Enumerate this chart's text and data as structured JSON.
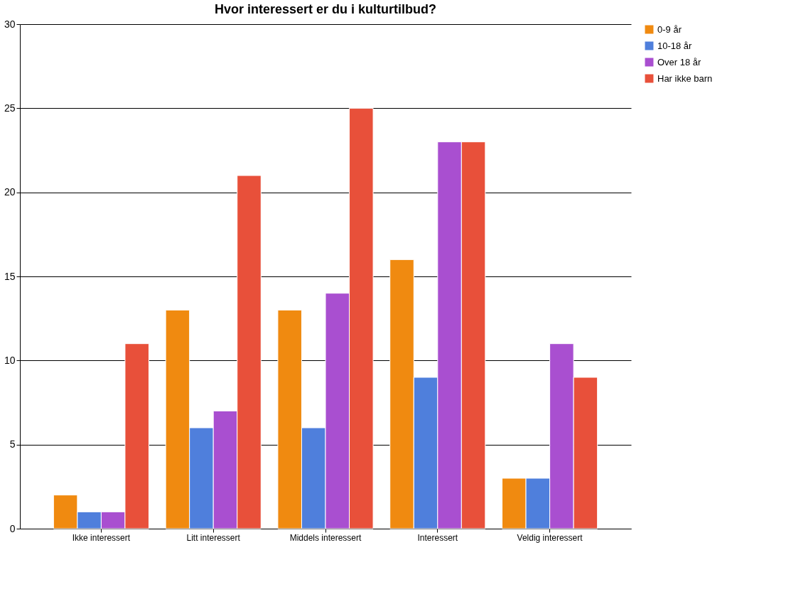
{
  "chart_data": {
    "type": "bar",
    "title": "Hvor interessert er du i kulturtilbud?",
    "categories": [
      "Ikke interessert",
      "Litt interessert",
      "Middels interessert",
      "Interessert",
      "Veldig interessert"
    ],
    "series": [
      {
        "name": "0-9 år",
        "color": "#f08a10",
        "values": [
          2,
          13,
          13,
          16,
          3
        ]
      },
      {
        "name": "10-18 år",
        "color": "#4f7fdc",
        "values": [
          1,
          6,
          6,
          9,
          3
        ]
      },
      {
        "name": "Over 18 år",
        "color": "#a94fd0",
        "values": [
          1,
          7,
          14,
          23,
          11
        ]
      },
      {
        "name": "Har ikke barn",
        "color": "#e8503a",
        "values": [
          11,
          21,
          25,
          23,
          9
        ]
      }
    ],
    "ylim": [
      0,
      30
    ],
    "yticks": [
      0,
      5,
      10,
      15,
      20,
      25,
      30
    ],
    "grid": "y",
    "legend": "right"
  }
}
